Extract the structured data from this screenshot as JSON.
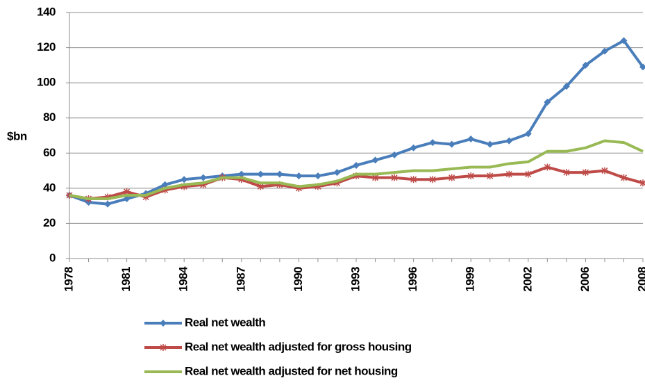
{
  "chart_data": {
    "type": "line",
    "y_label": "$bn",
    "categories": [
      "1978",
      null,
      null,
      "1981",
      null,
      null,
      "1984",
      null,
      null,
      "1987",
      null,
      null,
      "1990",
      null,
      null,
      "1993",
      null,
      null,
      "1996",
      null,
      null,
      "1999",
      null,
      null,
      "2002",
      null,
      null,
      "2006",
      null,
      null,
      "2008"
    ],
    "series": [
      {
        "name": "Real net wealth",
        "color": "#4a7ebb",
        "marker": "diamond",
        "values": [
          36,
          32,
          31,
          34,
          37,
          42,
          45,
          46,
          47,
          48,
          48,
          48,
          47,
          47,
          49,
          53,
          56,
          59,
          63,
          66,
          65,
          68,
          65,
          67,
          71,
          89,
          98,
          110,
          118,
          124,
          109
        ]
      },
      {
        "name": "Real net wealth adjusted for gross housing",
        "color": "#be4b48",
        "marker": "star",
        "values": [
          36,
          34,
          35,
          38,
          35,
          39,
          41,
          42,
          46,
          45,
          41,
          42,
          40,
          41,
          43,
          47,
          46,
          46,
          45,
          45,
          46,
          47,
          47,
          48,
          48,
          52,
          49,
          49,
          50,
          46,
          43
        ]
      },
      {
        "name": "Real net wealth adjusted for net housing",
        "color": "#98b954",
        "marker": "none",
        "values": [
          36,
          34,
          34,
          36,
          36,
          40,
          42,
          43,
          46,
          46,
          43,
          43,
          41,
          42,
          44,
          48,
          48,
          49,
          50,
          50,
          51,
          52,
          52,
          54,
          55,
          61,
          61,
          63,
          67,
          66,
          61
        ]
      }
    ],
    "ylim": [
      0,
      140
    ],
    "yticks": [
      0,
      20,
      40,
      60,
      80,
      100,
      120,
      140
    ],
    "grid": true
  }
}
